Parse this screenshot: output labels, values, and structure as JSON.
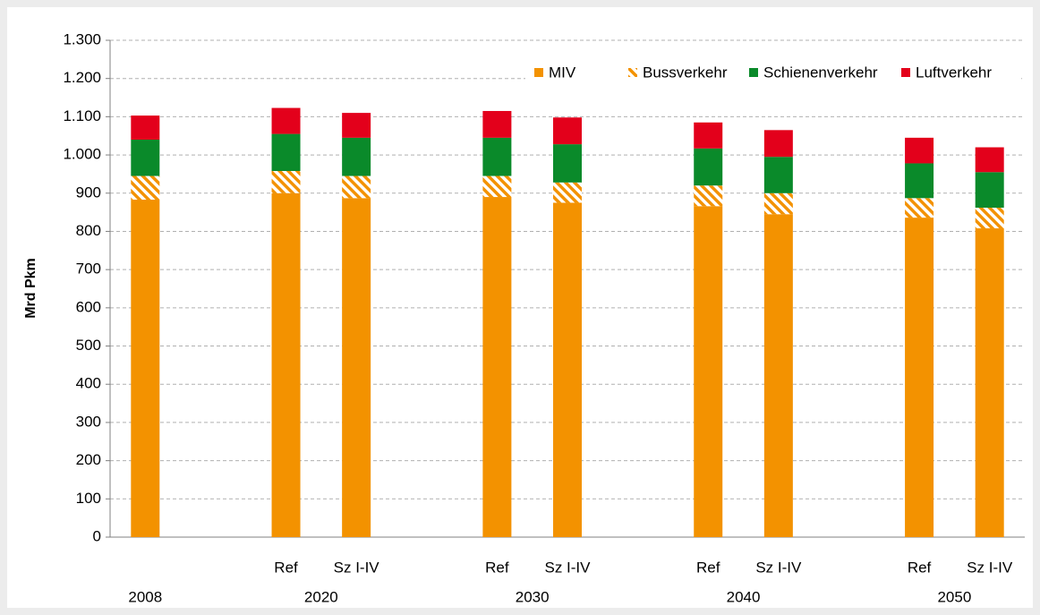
{
  "chart_data": {
    "type": "stacked_bar",
    "y_label": "Mrd Pkm",
    "categories": [
      null,
      "Ref",
      "Sz I-IV",
      "Ref",
      "Sz I-IV",
      "Ref",
      "Sz I-IV",
      "Ref",
      "Sz I-IV"
    ],
    "groups": [
      {
        "name": "2008",
        "size": 1
      },
      {
        "name": "2020",
        "size": 2
      },
      {
        "name": "2030",
        "size": 2
      },
      {
        "name": "2040",
        "size": 2
      },
      {
        "name": "2050",
        "size": 2
      }
    ],
    "series": [
      {
        "name": "MIV",
        "color": "#f39200",
        "pattern": "solid",
        "values": [
          883,
          900,
          887,
          890,
          875,
          866,
          845,
          836,
          808
        ]
      },
      {
        "name": "Bussverkehr",
        "color": "#f39200",
        "pattern": "hatch",
        "values": [
          62,
          58,
          58,
          55,
          53,
          54,
          55,
          51,
          54
        ]
      },
      {
        "name": "Schienenverkehr",
        "color": "#0a8a2a",
        "pattern": "solid",
        "values": [
          95,
          97,
          100,
          100,
          100,
          97,
          95,
          91,
          93
        ]
      },
      {
        "name": "Luftverkehr",
        "color": "#e3001b",
        "pattern": "solid",
        "values": [
          63,
          68,
          65,
          70,
          70,
          68,
          70,
          67,
          65
        ]
      }
    ],
    "ylim": [
      0,
      1300
    ],
    "yticks": [
      0,
      100,
      200,
      300,
      400,
      500,
      600,
      700,
      800,
      900,
      {
        "value": 1000,
        "label": "1.000"
      },
      {
        "value": 1100,
        "label": "1.100"
      },
      {
        "value": 1200,
        "label": "1.200"
      },
      {
        "value": 1300,
        "label": "1.300"
      }
    ],
    "grid": true,
    "legend": "upper right"
  }
}
